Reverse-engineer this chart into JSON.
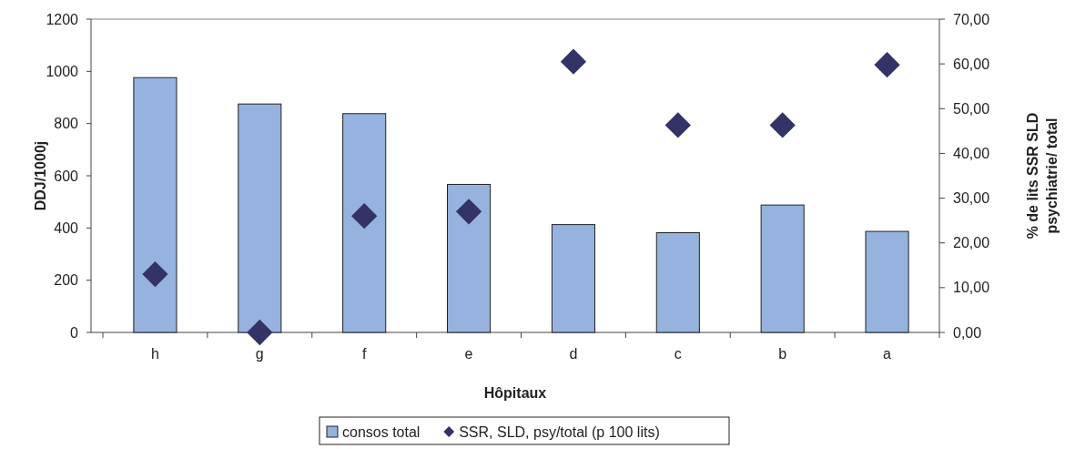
{
  "chart_data": {
    "type": "bar",
    "xlabel": "Hôpitaux",
    "ylabel": "DDJ/1000j",
    "y2label": "% de lits SSR SLD psychiatrie/ total",
    "categories": [
      "h",
      "g",
      "f",
      "e",
      "d",
      "c",
      "b",
      "a"
    ],
    "series": [
      {
        "name": "consos total",
        "color": "#95b3de",
        "values": [
          976,
          875,
          838,
          567,
          413,
          382,
          488,
          387
        ]
      },
      {
        "name": "SSR, SLD, psy/total (p 100 lits)",
        "type": "scatter",
        "axis": "y2",
        "marker": "diamond",
        "color": "#333366",
        "values": [
          13,
          0,
          26,
          27,
          60.5,
          46.3,
          46.3,
          59.8
        ]
      }
    ],
    "ylim": [
      0,
      1200
    ],
    "yticks": [
      0,
      200,
      400,
      600,
      800,
      1000,
      1200
    ],
    "y2lim": [
      0,
      70
    ],
    "y2ticks": [
      {
        "value": 0,
        "label": "0,00"
      },
      {
        "value": 10,
        "label": "10,00"
      },
      {
        "value": 20,
        "label": "20,00"
      },
      {
        "value": 30,
        "label": "30,00"
      },
      {
        "value": 40,
        "label": "40,00"
      },
      {
        "value": 50,
        "label": "50,00"
      },
      {
        "value": 60,
        "label": "60,00"
      },
      {
        "value": 70,
        "label": "70,00"
      }
    ],
    "grid": false,
    "legend": "bottom"
  }
}
